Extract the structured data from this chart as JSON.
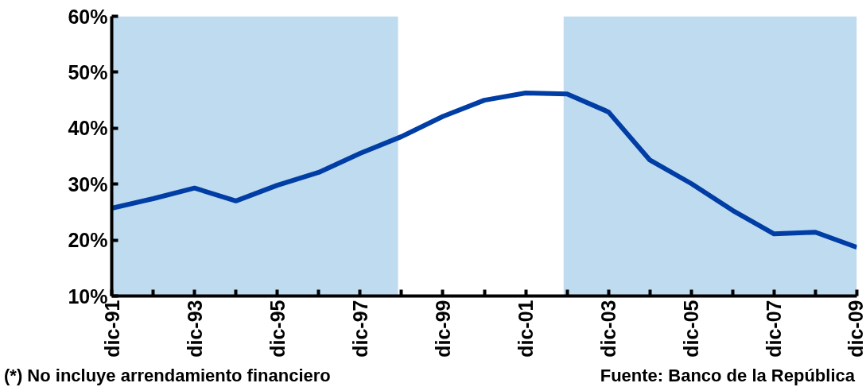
{
  "chart_data": {
    "type": "line",
    "x": [
      "1991-12",
      "1992-12",
      "1993-12",
      "1994-12",
      "1995-12",
      "1996-12",
      "1997-12",
      "1998-12",
      "1999-12",
      "2000-12",
      "2001-12",
      "2002-12",
      "2003-12",
      "2004-12",
      "2005-12",
      "2006-12",
      "2007-12",
      "2008-12",
      "2009-12"
    ],
    "series": [
      {
        "color": "#003da5",
        "values": [
          25.7,
          27.4,
          29.3,
          27.0,
          29.8,
          32.1,
          35.5,
          38.5,
          42.1,
          45.0,
          46.3,
          46.1,
          42.9,
          34.3,
          30.1,
          25.3,
          21.1,
          21.4,
          18.7
        ]
      }
    ],
    "xlim": [
      "1991-12",
      "2009-12"
    ],
    "xticks": [
      {
        "value": "1991-12",
        "label": "dic-91"
      },
      {
        "value": "1992-12",
        "label": null
      },
      {
        "value": "1993-12",
        "label": "dic-93"
      },
      {
        "value": "1994-12",
        "label": null
      },
      {
        "value": "1995-12",
        "label": "dic-95"
      },
      {
        "value": "1996-12",
        "label": null
      },
      {
        "value": "1997-12",
        "label": "dic-97"
      },
      {
        "value": "1998-12",
        "label": null
      },
      {
        "value": "1999-12",
        "label": "dic-99"
      },
      {
        "value": "2000-12",
        "label": null
      },
      {
        "value": "2001-12",
        "label": "dic-01"
      },
      {
        "value": "2002-12",
        "label": null
      },
      {
        "value": "2003-12",
        "label": "dic-03"
      },
      {
        "value": "2004-12",
        "label": null
      },
      {
        "value": "2005-12",
        "label": "dic-05"
      },
      {
        "value": "2006-12",
        "label": null
      },
      {
        "value": "2007-12",
        "label": "dic-07"
      },
      {
        "value": "2008-12",
        "label": null
      },
      {
        "value": "2009-12",
        "label": "dic-09"
      }
    ],
    "ylim": [
      10,
      60
    ],
    "yticks": [
      {
        "value": 10,
        "label": "10%"
      },
      {
        "value": 20,
        "label": "20%"
      },
      {
        "value": 30,
        "label": "30%"
      },
      {
        "value": 40,
        "label": "40%"
      },
      {
        "value": 50,
        "label": "50%"
      },
      {
        "value": 60,
        "label": "60%"
      }
    ],
    "bands": [
      {
        "axis": "x",
        "from": "1991-12",
        "to": "1998-11",
        "color": "#bfdbef"
      },
      {
        "axis": "x",
        "from": "2002-11",
        "to": "2009-12",
        "color": "#bfdbef"
      }
    ],
    "grid": false,
    "marker": "none",
    "line_style": "solid",
    "annotations": [
      "(*) No incluye arrendamiento financiero",
      "Fuente: Banco de la República"
    ]
  }
}
